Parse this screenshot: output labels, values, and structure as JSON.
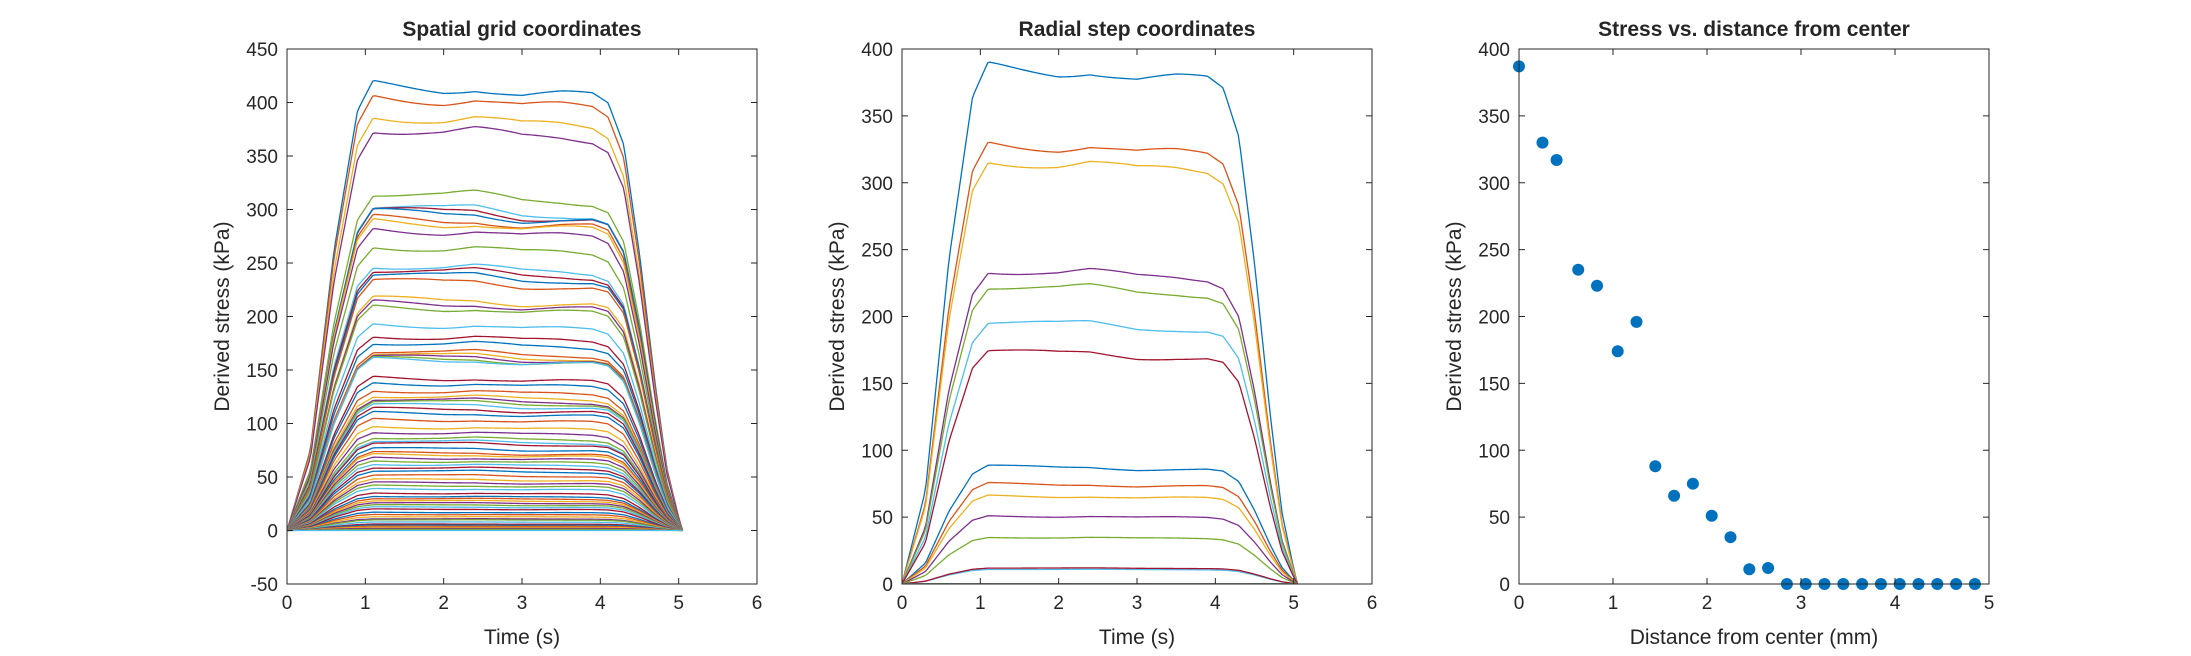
{
  "figure": {
    "palette": [
      "#0072BD",
      "#D95319",
      "#EDB120",
      "#7E2F8E",
      "#77AC30",
      "#4DBEEE",
      "#A2142F"
    ],
    "box_color": "#262626",
    "marker_color": "#0072BD"
  },
  "chart_data": [
    {
      "type": "line",
      "title": "Spatial grid coordinates",
      "xlabel": "Time (s)",
      "ylabel": "Derived stress (kPa)",
      "xlim": [
        0,
        6
      ],
      "ylim": [
        -50,
        450
      ],
      "xticks": [
        0,
        1,
        2,
        3,
        4,
        5,
        6
      ],
      "yticks": [
        -50,
        0,
        50,
        100,
        150,
        200,
        250,
        300,
        350,
        400,
        450
      ],
      "grid": false,
      "legend": "none",
      "curve_shape": {
        "time": [
          0,
          0.3,
          0.6,
          0.9,
          1.1,
          1.5,
          2.0,
          2.4,
          2.7,
          3.0,
          3.5,
          3.9,
          4.1,
          4.3,
          4.5,
          4.7,
          4.85,
          5.0,
          5.05
        ],
        "relative": [
          0,
          0.18,
          0.62,
          0.93,
          1.0,
          0.995,
          0.99,
          0.995,
          0.985,
          0.975,
          0.975,
          0.97,
          0.95,
          0.86,
          0.62,
          0.33,
          0.14,
          0.03,
          0
        ]
      },
      "series_peaks": [
        417,
        406,
        388,
        376,
        316,
        303,
        300,
        298,
        292,
        289,
        282,
        266,
        248,
        244,
        240,
        234,
        217,
        213,
        209,
        193,
        182,
        176,
        168,
        165,
        163,
        161,
        160,
        143,
        138,
        131,
        126,
        123,
        121,
        118,
        114,
        110,
        104,
        97,
        92,
        87,
        84,
        82,
        77,
        73,
        71,
        68,
        65,
        62,
        59,
        56,
        52,
        48,
        45,
        42,
        39,
        35,
        32,
        30,
        28,
        26,
        24,
        22,
        20,
        17,
        15,
        13,
        11,
        10,
        8,
        6,
        5,
        4,
        3,
        2,
        1,
        0
      ]
    },
    {
      "type": "line",
      "title": "Radial step coordinates",
      "xlabel": "Time (s)",
      "ylabel": "Derived stress (kPa)",
      "xlim": [
        0,
        6
      ],
      "ylim": [
        0,
        400
      ],
      "xticks": [
        0,
        1,
        2,
        3,
        4,
        5,
        6
      ],
      "yticks": [
        0,
        50,
        100,
        150,
        200,
        250,
        300,
        350,
        400
      ],
      "grid": false,
      "legend": "none",
      "curve_shape": {
        "time": [
          0,
          0.3,
          0.6,
          0.9,
          1.1,
          1.5,
          2.0,
          2.4,
          2.7,
          3.0,
          3.5,
          3.9,
          4.1,
          4.3,
          4.5,
          4.7,
          4.85,
          5.0,
          5.05
        ],
        "relative": [
          0,
          0.18,
          0.62,
          0.93,
          1.0,
          0.995,
          0.99,
          0.995,
          0.985,
          0.975,
          0.975,
          0.97,
          0.95,
          0.86,
          0.62,
          0.33,
          0.14,
          0.03,
          0
        ]
      },
      "series_peaks": [
        387,
        330,
        317,
        235,
        223,
        196,
        174,
        88,
        75,
        66,
        51,
        35,
        11,
        12,
        0,
        0,
        0,
        0,
        0,
        0,
        0,
        0,
        0,
        0,
        0,
        0,
        0
      ]
    },
    {
      "type": "scatter",
      "title": "Stress vs. distance from center",
      "xlabel": "Distance from center (mm)",
      "ylabel": "Derived stress (kPa)",
      "xlim": [
        0,
        5
      ],
      "ylim": [
        0,
        400
      ],
      "xticks": [
        0,
        1,
        2,
        3,
        4,
        5
      ],
      "yticks": [
        0,
        50,
        100,
        150,
        200,
        250,
        300,
        350,
        400
      ],
      "grid": false,
      "legend": "none",
      "x": [
        0,
        0.25,
        0.4,
        0.63,
        0.83,
        1.05,
        1.25,
        1.45,
        1.65,
        1.85,
        2.05,
        2.25,
        2.45,
        2.65,
        2.85,
        3.05,
        3.25,
        3.45,
        3.65,
        3.85,
        4.05,
        4.25,
        4.45,
        4.65,
        4.85
      ],
      "y": [
        387,
        330,
        317,
        235,
        223,
        174,
        196,
        88,
        66,
        75,
        51,
        35,
        11,
        12,
        0,
        0,
        0,
        0,
        0,
        0,
        0,
        0,
        0,
        0,
        0
      ]
    }
  ]
}
